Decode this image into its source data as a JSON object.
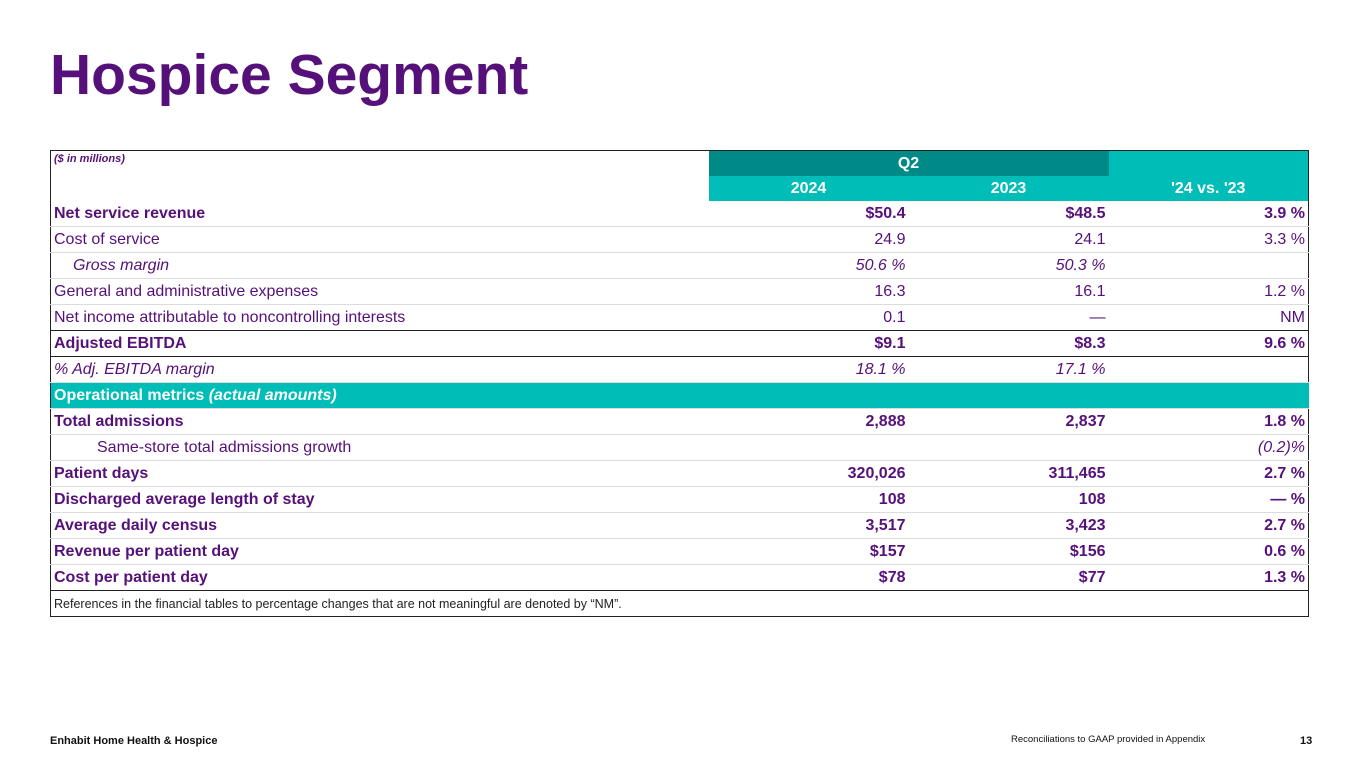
{
  "title": "Hospice Segment",
  "table": {
    "unit_note": "($ in millions)",
    "period_label": "Q2",
    "columns": [
      "2024",
      "2023",
      "'24 vs. '23"
    ],
    "rows": [
      {
        "label": "Net service revenue",
        "v2024": "$50.4",
        "v2023": "$48.5",
        "change": "3.9 %"
      },
      {
        "label": "Cost of service",
        "v2024": "24.9",
        "v2023": "24.1",
        "change": "3.3 %"
      },
      {
        "label": "Gross margin",
        "v2024": "50.6 %",
        "v2023": "50.3 %",
        "change": ""
      },
      {
        "label": "General and administrative expenses",
        "v2024": "16.3",
        "v2023": "16.1",
        "change": "1.2 %"
      },
      {
        "label": "Net income attributable to noncontrolling interests",
        "v2024": "0.1",
        "v2023": "—",
        "change": "NM"
      },
      {
        "label": "Adjusted EBITDA",
        "v2024": "$9.1",
        "v2023": "$8.3",
        "change": "9.6 %"
      },
      {
        "label": "% Adj. EBITDA margin",
        "v2024": "18.1 %",
        "v2023": "17.1 %",
        "change": ""
      }
    ],
    "section": {
      "label": "Operational metrics ",
      "label_italic": "(actual amounts)"
    },
    "metrics": [
      {
        "label": "Total admissions",
        "v2024": "2,888",
        "v2023": "2,837",
        "change": "1.8 %"
      },
      {
        "label": "Same-store total admissions growth",
        "v2024": "",
        "v2023": "",
        "change": "(0.2)%"
      },
      {
        "label": "Patient days",
        "v2024": "320,026",
        "v2023": "311,465",
        "change": "2.7 %"
      },
      {
        "label": "Discharged average length of stay",
        "v2024": "108",
        "v2023": "108",
        "change": "— %"
      },
      {
        "label": "Average daily census",
        "v2024": "3,517",
        "v2023": "3,423",
        "change": "2.7 %"
      },
      {
        "label": "Revenue per patient day",
        "v2024": "$157",
        "v2023": "$156",
        "change": "0.6 %"
      },
      {
        "label": "Cost per patient day",
        "v2024": "$78",
        "v2023": "$77",
        "change": "1.3 %"
      }
    ],
    "footnote": "References in the financial tables to percentage changes that are not meaningful are denoted by  “NM”."
  },
  "footer": {
    "company": "Enhabit Home Health & Hospice",
    "note": "Reconciliations to GAAP provided in Appendix",
    "page_number": "13"
  },
  "colors": {
    "purple": "#56107a",
    "teal": "#00bdb7",
    "dark_teal": "#008a87"
  }
}
